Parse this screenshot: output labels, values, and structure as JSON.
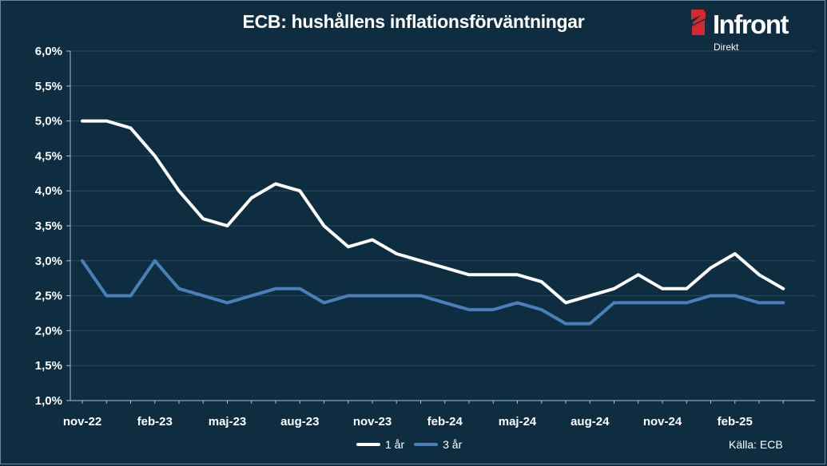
{
  "chart_data": {
    "type": "line",
    "title": "ECB: hushållens inflationsförväntningar",
    "x": [
      "nov-22",
      "dec-22",
      "jan-23",
      "feb-23",
      "mar-23",
      "apr-23",
      "maj-23",
      "jun-23",
      "jul-23",
      "aug-23",
      "sep-23",
      "okt-23",
      "nov-23",
      "dec-23",
      "jan-24",
      "feb-24",
      "mar-24",
      "apr-24",
      "maj-24",
      "jun-24",
      "jul-24",
      "aug-24",
      "sep-24",
      "okt-24",
      "nov-24",
      "dec-24",
      "jan-25",
      "feb-25",
      "mar-25",
      "apr-25"
    ],
    "x_tick_labels": [
      "nov-22",
      "feb-23",
      "maj-23",
      "aug-23",
      "nov-23",
      "feb-24",
      "maj-24",
      "aug-24",
      "nov-24",
      "feb-25"
    ],
    "y_tick_labels": [
      "1,0%",
      "1,5%",
      "2,0%",
      "2,5%",
      "3,0%",
      "3,5%",
      "4,0%",
      "4,5%",
      "5,0%",
      "5,5%",
      "6,0%"
    ],
    "ylim": [
      1.0,
      6.0
    ],
    "ystep": 0.5,
    "grid": true,
    "legend_position": "bottom-center",
    "series": [
      {
        "name": "1 år",
        "color": "#ffffff",
        "values": [
          5.0,
          5.0,
          4.9,
          4.5,
          4.0,
          3.6,
          3.5,
          3.9,
          4.1,
          4.0,
          3.5,
          3.2,
          3.3,
          3.1,
          3.0,
          2.9,
          2.8,
          2.8,
          2.8,
          2.7,
          2.4,
          2.5,
          2.6,
          2.8,
          2.6,
          2.6,
          2.9,
          3.1,
          2.8,
          2.6
        ]
      },
      {
        "name": "3 år",
        "color": "#4a7fb8",
        "values": [
          3.0,
          2.5,
          2.5,
          3.0,
          2.6,
          2.5,
          2.4,
          2.5,
          2.6,
          2.6,
          2.4,
          2.5,
          2.5,
          2.5,
          2.5,
          2.4,
          2.3,
          2.3,
          2.4,
          2.3,
          2.1,
          2.1,
          2.4,
          2.4,
          2.4,
          2.4,
          2.5,
          2.5,
          2.4,
          2.4
        ]
      }
    ]
  },
  "brand": {
    "name": "Infront",
    "sub": "Direkt",
    "accent": "#d7282f"
  },
  "source_text": "Källa:  ECB"
}
